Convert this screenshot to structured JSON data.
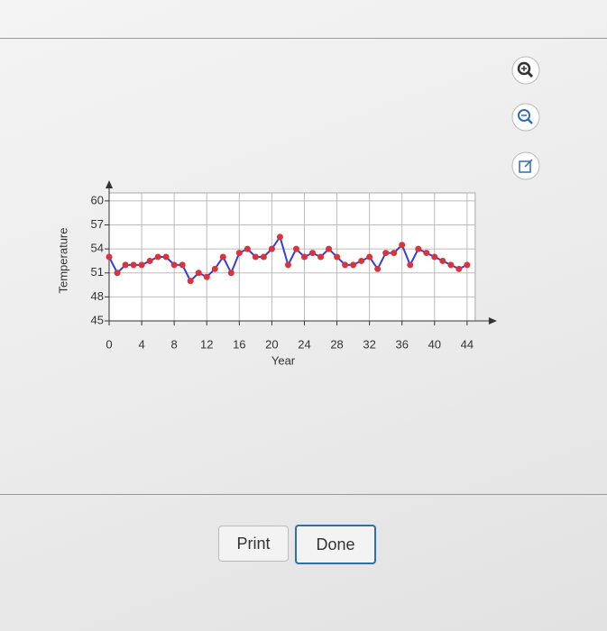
{
  "buttons": [
    "Print",
    "Done"
  ],
  "chart_data": {
    "type": "line",
    "x_label": "Year",
    "y_label": "Temperature",
    "x": [
      0,
      1,
      2,
      3,
      4,
      5,
      6,
      7,
      8,
      9,
      10,
      11,
      12,
      13,
      14,
      15,
      16,
      17,
      18,
      19,
      20,
      21,
      22,
      23,
      24,
      25,
      26,
      27,
      28,
      29,
      30,
      31,
      32,
      33,
      34,
      35,
      36,
      37,
      38,
      39,
      40,
      41,
      42,
      43,
      44
    ],
    "values": [
      53,
      51,
      52,
      52,
      52,
      52.5,
      53,
      53,
      52,
      52,
      50,
      51,
      50.5,
      51.5,
      53,
      51,
      53.5,
      54,
      53,
      53,
      54,
      55.5,
      52,
      54,
      53,
      53.5,
      53,
      54,
      53,
      52,
      52,
      52.5,
      53,
      51.5,
      53.5,
      53.5,
      54.5,
      52,
      54,
      53.5,
      53,
      52.5,
      52,
      51.5,
      52
    ],
    "line_color": "#3b3bdc",
    "marker_color": "#d8343c",
    "xlim": [
      0,
      45
    ],
    "ylim": [
      45,
      61
    ],
    "xticks": [
      0,
      4,
      8,
      12,
      16,
      20,
      24,
      28,
      32,
      36,
      40,
      44
    ],
    "yticks": [
      45,
      48,
      51,
      54,
      57,
      60
    ],
    "grid": true
  }
}
